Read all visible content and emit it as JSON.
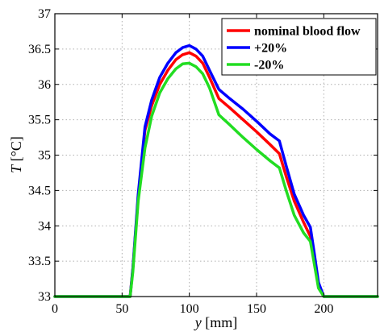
{
  "chart_data": {
    "type": "line",
    "title": "",
    "xlabel_var": "y",
    "xlabel_unit": " [mm]",
    "ylabel_var": "T",
    "ylabel_unit": " [°C]",
    "xlim": [
      0,
      240
    ],
    "ylim": [
      33,
      37
    ],
    "xticks": [
      0,
      50,
      100,
      150,
      200
    ],
    "xtick_labels": [
      "0",
      "50",
      "100",
      "150",
      "200"
    ],
    "yticks": [
      33,
      33.5,
      34,
      34.5,
      35,
      35.5,
      36,
      36.5,
      37
    ],
    "ytick_labels": [
      "33",
      "33.5",
      "34",
      "34.5",
      "35",
      "35.5",
      "36",
      "36.5",
      "37"
    ],
    "grid": true,
    "legend_position": "top-right",
    "series": [
      {
        "name": "nominal blood flow",
        "color": "#ff0000",
        "x": [
          0,
          56,
          58,
          62,
          67,
          72,
          78,
          84,
          90,
          95,
          100,
          105,
          110,
          115,
          122,
          130,
          140,
          150,
          160,
          167,
          172,
          178,
          185,
          190,
          193,
          196,
          200,
          240
        ],
        "y": [
          33,
          33,
          33.4,
          34.4,
          35.35,
          35.7,
          36.0,
          36.2,
          36.35,
          36.42,
          36.45,
          36.4,
          36.3,
          36.1,
          35.8,
          35.67,
          35.5,
          35.33,
          35.15,
          35.02,
          34.7,
          34.35,
          34.05,
          33.85,
          33.5,
          33.15,
          33,
          33
        ]
      },
      {
        "name": "+20%",
        "color": "#0000ff",
        "x": [
          0,
          56,
          58,
          62,
          67,
          72,
          78,
          84,
          90,
          95,
          100,
          105,
          110,
          115,
          122,
          130,
          140,
          150,
          160,
          167,
          172,
          178,
          185,
          190,
          193,
          196,
          200,
          240
        ],
        "y": [
          33,
          33,
          33.4,
          34.45,
          35.4,
          35.78,
          36.1,
          36.3,
          36.45,
          36.52,
          36.55,
          36.5,
          36.4,
          36.2,
          35.93,
          35.8,
          35.65,
          35.48,
          35.3,
          35.2,
          34.85,
          34.45,
          34.15,
          33.98,
          33.6,
          33.2,
          33,
          33
        ]
      },
      {
        "name": "-20%",
        "color": "#22dd22",
        "x": [
          0,
          56,
          58,
          62,
          67,
          72,
          78,
          84,
          90,
          95,
          100,
          105,
          110,
          115,
          122,
          130,
          140,
          150,
          160,
          167,
          172,
          178,
          185,
          190,
          193,
          196,
          200,
          240
        ],
        "y": [
          33,
          33,
          33.35,
          34.35,
          35.1,
          35.55,
          35.88,
          36.08,
          36.22,
          36.29,
          36.3,
          36.25,
          36.15,
          35.95,
          35.57,
          35.43,
          35.25,
          35.08,
          34.92,
          34.82,
          34.5,
          34.15,
          33.9,
          33.78,
          33.45,
          33.12,
          33,
          33
        ]
      }
    ]
  }
}
